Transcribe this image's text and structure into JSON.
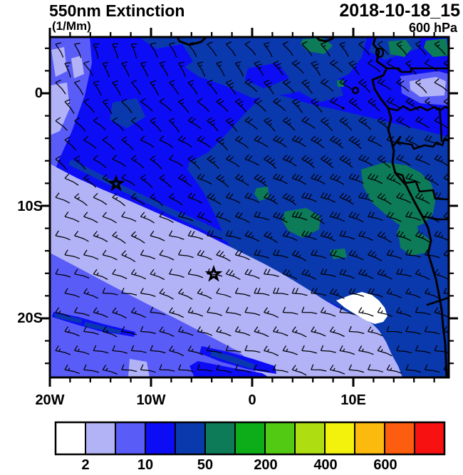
{
  "header": {
    "title": "550nm Extinction",
    "units_subtitle": "(1/Mm)",
    "datetime": "2018-10-18_15",
    "pressure_level": "600 hPa"
  },
  "axes": {
    "lat_labels": [
      "0",
      "10S",
      "20S"
    ],
    "lon_labels": [
      "20W",
      "10W",
      "0",
      "10E"
    ]
  },
  "colorbar": {
    "tick_labels": [
      "2",
      "10",
      "50",
      "200",
      "400",
      "600"
    ],
    "colors": [
      "#ffffff",
      "#b2b3f7",
      "#5a5cf8",
      "#0d0df5",
      "#0a39ae",
      "#0d7a58",
      "#0cad19",
      "#52c913",
      "#aede11",
      "#f2f20d",
      "#fdba0e",
      "#fd5d0e",
      "#f81111"
    ]
  },
  "chart_data": {
    "type": "heatmap",
    "title": "550nm Extinction",
    "units": "1/Mm",
    "valid_time": "2018-10-18_15",
    "level": "600 hPa",
    "x_axis": {
      "labeled_ticks": [
        "20W",
        "10W",
        "0",
        "10E"
      ],
      "range_deg": [
        -20,
        19.4
      ],
      "minor_tick_step_deg": 2
    },
    "y_axis": {
      "labeled_ticks": [
        "0",
        "10S",
        "20S"
      ],
      "range_deg": [
        -25.2,
        5
      ],
      "minor_tick_step_deg": 2
    },
    "colorbar_labeled_levels": [
      2,
      10,
      50,
      200,
      400,
      600
    ],
    "fill_palette": [
      "#ffffff",
      "#b2b3f7",
      "#5a5cf8",
      "#0d0df5",
      "#0a39ae",
      "#0d7a58",
      "#0cad19",
      "#52c913",
      "#aede11",
      "#f2f20d",
      "#fdba0e",
      "#fd5d0e",
      "#f81111"
    ],
    "field_summary": [
      {
        "shade": "white (<2)",
        "where": "small pocket offshore ~11E,16-17S"
      },
      {
        "shade": "pale lavender (2-5)",
        "where": "broad southwest/south-central region"
      },
      {
        "shade": "violet (5-10)",
        "where": "far southwest corner band and upper-left edge"
      },
      {
        "shade": "blue (10-25)",
        "where": "equatorial corridor and general background"
      },
      {
        "shade": "navy (25-50)",
        "where": "large central-eastern plume, northern band, coastal strip"
      },
      {
        "shade": "teal (50-100)",
        "where": "patches near the African coast and along the top edge"
      }
    ],
    "overlays": {
      "wind_barbs": {
        "color": "#000000",
        "approx_grid_spacing_px": 27,
        "flow": "mostly zonal easterly-type flow, strongest (2-3 full barbs) over central/eastern plume, weak toward corners"
      },
      "markers": [
        {
          "shape": "star",
          "approx_lon_deg": -13.5,
          "approx_lat_deg": -8.0
        },
        {
          "shape": "star",
          "approx_lon_deg": -3.8,
          "approx_lat_deg": -16.1
        }
      ],
      "geography": "west-central African coastline (Gulf of Guinea to ~25S), Bioko and Sao Tome islands, national borders"
    }
  }
}
